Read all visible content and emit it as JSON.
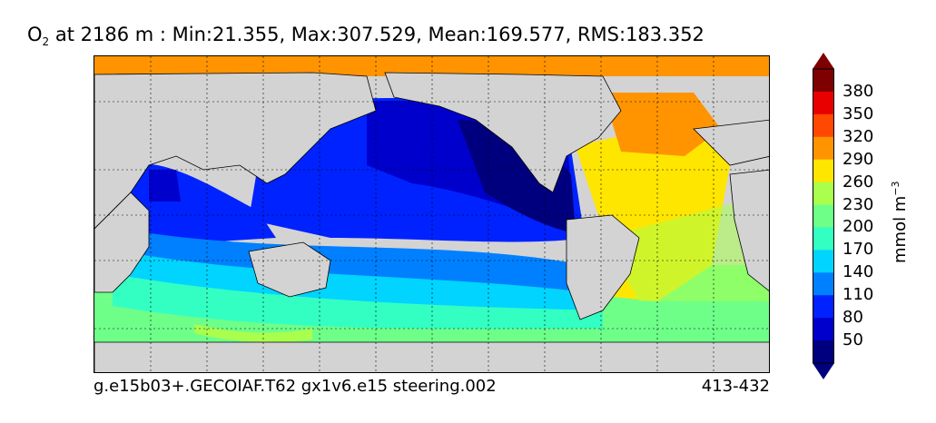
{
  "title": {
    "species": "O",
    "species_sub": "2",
    "rest": " at 2186 m : Min:21.355, Max:307.529, Mean:169.577, RMS:183.352"
  },
  "footer": {
    "case_name": "g.e15b03+.GECOIAF.T62 gx1v6.e15 steering.002",
    "years": "413-432"
  },
  "colorbar": {
    "unit_text": "mmol m",
    "unit_exp": "−3",
    "tick_labels": [
      "50",
      "80",
      "110",
      "140",
      "170",
      "200",
      "230",
      "260",
      "290",
      "320",
      "350",
      "380"
    ],
    "colors": [
      "#00007f",
      "#0000cd",
      "#0022ff",
      "#0080ff",
      "#00d4ff",
      "#33ffc3",
      "#6eff89",
      "#aaff4d",
      "#ffe600",
      "#ff9400",
      "#ff4800",
      "#e80000",
      "#7f0000"
    ],
    "land_color": "#d3d3d3"
  }
}
